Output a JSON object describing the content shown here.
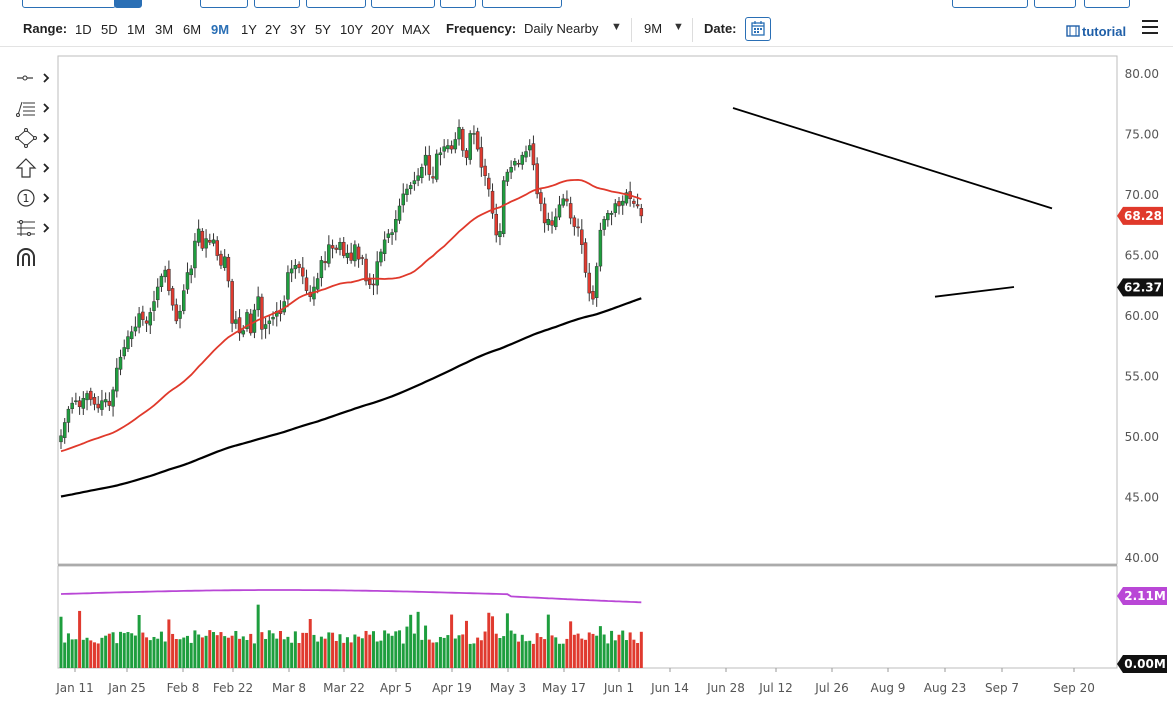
{
  "toolbar": {
    "range_label": "Range:",
    "ranges": [
      "1D",
      "5D",
      "1M",
      "3M",
      "6M",
      "9M",
      "1Y",
      "2Y",
      "3Y",
      "5Y",
      "10Y",
      "20Y",
      "MAX"
    ],
    "active_range": "9M",
    "frequency_label": "Frequency:",
    "frequency_value": "Daily Nearby",
    "period_value": "9M",
    "date_label": "Date:",
    "tutorial_label": "tutorial"
  },
  "colors": {
    "up": "#1e9e3e",
    "down": "#e03a2f",
    "ma50": "#e0392b",
    "ma200": "#000000",
    "volume_avg": "#b947d6",
    "accent": "#2a6fb5"
  },
  "chart_data": {
    "type": "candlestick",
    "y_axis": {
      "ticks": [
        "80.00",
        "75.00",
        "70.00",
        "65.00",
        "60.00",
        "55.00",
        "50.00",
        "45.00",
        "40.00"
      ],
      "range": [
        39.5,
        81.5
      ],
      "side": "right"
    },
    "x_axis": {
      "tick_labels": [
        "Jan 11",
        "Jan 25",
        "Feb 8",
        "Feb 22",
        "Mar 8",
        "Mar 22",
        "Apr 5",
        "Apr 19",
        "May 3",
        "May 17",
        "Jun 1",
        "Jun 14",
        "Jun 28",
        "Jul 12",
        "Jul 26",
        "Aug 9",
        "Aug 23",
        "Sep 7",
        "Sep 20"
      ]
    },
    "last_price_label": "68.28",
    "ma200_label": "62.37",
    "trendline_upper": [
      {
        "x": "Jun 30",
        "y": 77.2
      },
      {
        "x": "Sep 17",
        "y": 68.9
      }
    ],
    "trendline_lower": [
      {
        "x": "Aug 23",
        "y": 61.6
      },
      {
        "x": "Sep 10",
        "y": 62.4
      }
    ],
    "closes": [
      50.1,
      51.2,
      52.3,
      52.8,
      53.0,
      52.5,
      53.2,
      53.6,
      53.1,
      52.7,
      52.4,
      53.0,
      53.1,
      52.6,
      53.9,
      55.7,
      56.6,
      57.4,
      58.3,
      58.7,
      59.1,
      60.2,
      59.7,
      59.4,
      60.3,
      61.2,
      62.4,
      63.3,
      63.8,
      62.1,
      60.9,
      59.6,
      60.4,
      62.1,
      63.6,
      63.9,
      66.2,
      67.2,
      65.6,
      66.4,
      66.1,
      66.3,
      65.0,
      64.2,
      64.9,
      62.9,
      59.4,
      59.7,
      58.6,
      58.8,
      60.3,
      58.6,
      60.5,
      61.6,
      58.9,
      59.3,
      59.6,
      59.9,
      60.4,
      60.2,
      61.2,
      63.6,
      63.9,
      64.2,
      64.0,
      63.3,
      62.1,
      61.6,
      62.4,
      63.1,
      64.6,
      64.4,
      65.9,
      65.6,
      65.5,
      66.1,
      65.0,
      65.2,
      64.6,
      65.9,
      64.7,
      64.8,
      62.9,
      62.6,
      62.6,
      64.5,
      65.3,
      66.3,
      66.8,
      66.9,
      68.0,
      69.1,
      70.1,
      70.5,
      70.8,
      71.2,
      71.6,
      72.3,
      73.3,
      71.7,
      71.4,
      73.4,
      73.5,
      74.0,
      74.1,
      73.8,
      74.6,
      75.6,
      73.7,
      73.1,
      75.1,
      75.1,
      73.8,
      72.3,
      71.6,
      70.5,
      68.5,
      66.7,
      67.0,
      71.2,
      71.9,
      72.3,
      72.8,
      72.6,
      73.3,
      73.6,
      74.1,
      72.5,
      70.1,
      69.3,
      67.7,
      68.0,
      67.5,
      68.2,
      69.2,
      69.7,
      69.5,
      68.1,
      67.4,
      67.3,
      65.9,
      63.6,
      61.9,
      61.4,
      64.1,
      67.1,
      68.0,
      68.5,
      68.5,
      69.3,
      69.1,
      69.5,
      70.2,
      69.7,
      69.3,
      69.1,
      68.28
    ],
    "volume_axis": {
      "ticks": [
        "2.11M",
        "0.00M"
      ]
    }
  }
}
